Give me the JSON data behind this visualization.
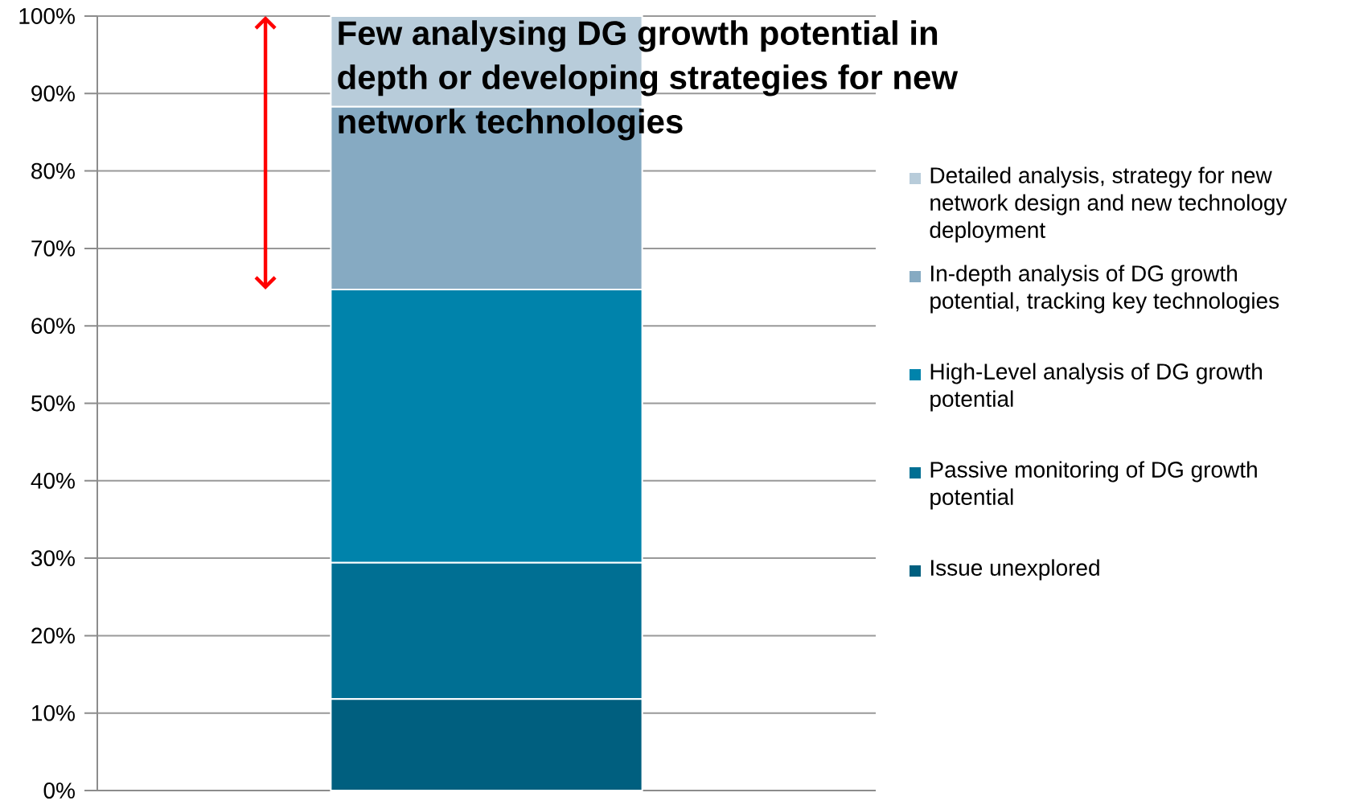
{
  "chart_data": {
    "type": "bar",
    "stacked": true,
    "annotations": [
      "Few analysing DG growth potential in depth or developing strategies for new network technologies"
    ],
    "categories": [
      null
    ],
    "series": [
      {
        "name": "Issue unexplored",
        "color": "#005f7f",
        "values": [
          11.8
        ]
      },
      {
        "name": "Passive monitoring of DG growth potential",
        "color": "#006f93",
        "values": [
          17.6
        ]
      },
      {
        "name": "High-Level analysis of DG growth potential",
        "color": "#0083ab",
        "values": [
          35.3
        ]
      },
      {
        "name": "In-depth analysis of DG growth potential, tracking key technologies",
        "color": "#86aac2",
        "values": [
          23.6
        ]
      },
      {
        "name": "Detailed analysis, strategy for new network design and new technology deployment",
        "color": "#b8ccda",
        "values": [
          11.7
        ]
      }
    ],
    "ylim": [
      0,
      100
    ],
    "yticks": [
      {
        "value": 0,
        "label": "0%"
      },
      {
        "value": 10,
        "label": "10%"
      },
      {
        "value": 20,
        "label": "20%"
      },
      {
        "value": 30,
        "label": "30%"
      },
      {
        "value": 40,
        "label": "40%"
      },
      {
        "value": 50,
        "label": "50%"
      },
      {
        "value": 60,
        "label": "60%"
      },
      {
        "value": 70,
        "label": "70%"
      },
      {
        "value": 80,
        "label": "80%"
      },
      {
        "value": 90,
        "label": "90%"
      },
      {
        "value": 100,
        "label": "100%"
      }
    ],
    "grid": "y",
    "legend": "right"
  }
}
